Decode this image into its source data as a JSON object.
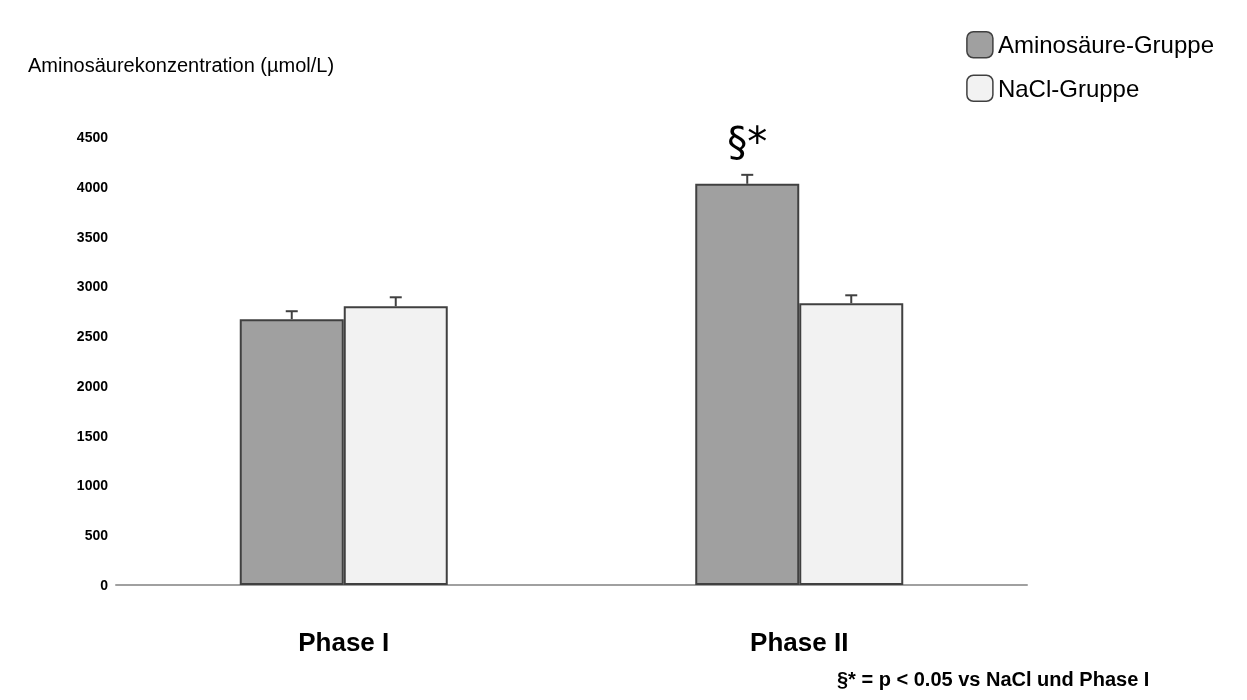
{
  "chart_data": {
    "type": "bar",
    "ylabel": "Aminosäurekonzentration (µmol/L)",
    "categories": [
      "Phase I",
      "Phase II"
    ],
    "series": [
      {
        "name": "Aminosäure-Gruppe",
        "color": "#a0a0a0",
        "values": [
          2670,
          4030
        ],
        "errors": [
          80,
          90
        ]
      },
      {
        "name": "NaCl-Gruppe",
        "color": "#f2f2f2",
        "values": [
          2800,
          2830
        ],
        "errors": [
          90,
          80
        ]
      }
    ],
    "ylim": [
      0,
      4500
    ],
    "yticks": [
      0,
      500,
      1000,
      1500,
      2000,
      2500,
      3000,
      3500,
      4000,
      4500
    ],
    "grid": false,
    "legend": "top right",
    "annotations": [
      {
        "text": "§*",
        "x": "Phase II",
        "y": 4030
      },
      "§* = p < 0.05 vs NaCl und Phase I"
    ]
  }
}
